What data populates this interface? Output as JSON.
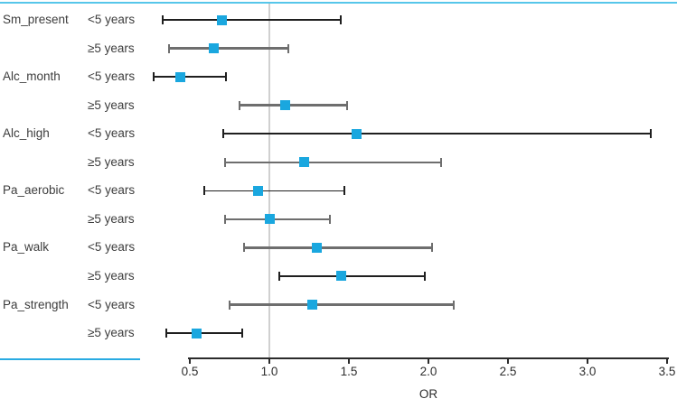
{
  "chart_data": {
    "type": "forest",
    "title": "",
    "xlabel": "OR",
    "xlim": [
      0.5,
      3.5
    ],
    "xticks": [
      0.5,
      1.0,
      1.5,
      2.0,
      2.5,
      3.0,
      3.5
    ],
    "xtick_labels": [
      "0.5",
      "1.0",
      "1.5",
      "2.0",
      "2.5",
      "3.0",
      "3.5"
    ],
    "reference_line": 1.0,
    "legend": "none",
    "grid": "off",
    "rows": [
      {
        "group": "Sm_present",
        "subgroup": "<5 years",
        "or": 0.7,
        "ci_low": 0.33,
        "ci_high": 1.45,
        "line_color": "black"
      },
      {
        "group": "",
        "subgroup": "≥5 years",
        "or": 0.65,
        "ci_low": 0.37,
        "ci_high": 1.12,
        "line_color": "gray"
      },
      {
        "group": "Alc_month",
        "subgroup": "<5 years",
        "or": 0.44,
        "ci_low": 0.27,
        "ci_high": 0.73,
        "line_color": "black"
      },
      {
        "group": "",
        "subgroup": "≥5 years",
        "or": 1.1,
        "ci_low": 0.81,
        "ci_high": 1.49,
        "line_color": "gray"
      },
      {
        "group": "Alc_high",
        "subgroup": "<5 years",
        "or": 1.55,
        "ci_low": 0.71,
        "ci_high": 3.4,
        "line_color": "black"
      },
      {
        "group": "",
        "subgroup": "≥5 years",
        "or": 1.22,
        "ci_low": 0.72,
        "ci_high": 2.08,
        "line_color": "gray"
      },
      {
        "group": "Pa_aerobic",
        "subgroup": "<5 years",
        "or": 0.93,
        "ci_low": 0.59,
        "ci_high": 1.47,
        "line_color": "black"
      },
      {
        "group": "",
        "subgroup": "≥5 years",
        "or": 1.0,
        "ci_low": 0.72,
        "ci_high": 1.38,
        "line_color": "gray"
      },
      {
        "group": "Pa_walk",
        "subgroup": "<5 years",
        "or": 1.3,
        "ci_low": 0.84,
        "ci_high": 2.02,
        "line_color": "gray"
      },
      {
        "group": "",
        "subgroup": "≥5 years",
        "or": 1.45,
        "ci_low": 1.06,
        "ci_high": 1.98,
        "line_color": "black"
      },
      {
        "group": "Pa_strength",
        "subgroup": "<5 years",
        "or": 1.27,
        "ci_low": 0.75,
        "ci_high": 2.16,
        "line_color": "gray"
      },
      {
        "group": "",
        "subgroup": "≥5 years",
        "or": 0.54,
        "ci_low": 0.35,
        "ci_high": 0.83,
        "line_color": "black"
      }
    ],
    "colors": {
      "marker": "#1AA7DF",
      "line_black": "#1f1f1f",
      "line_gray": "#6e6e6e",
      "reference_line": "#d0d0d0",
      "top_rule": "#56C6EA",
      "label_rule": "#29ABE2",
      "axis": "#2b2b2b",
      "text": "#3d3d3d"
    }
  }
}
